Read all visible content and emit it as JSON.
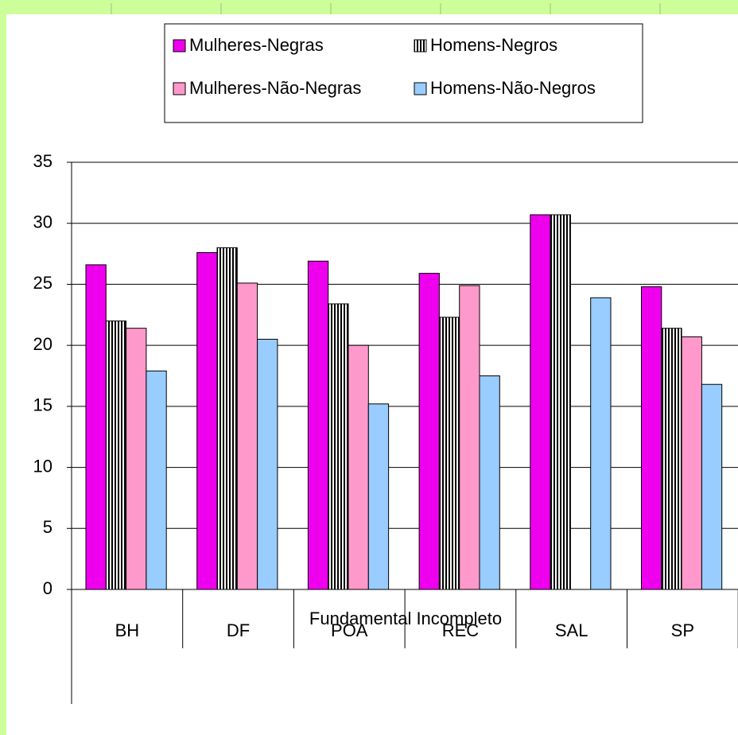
{
  "chart_data": {
    "type": "bar",
    "x_label": "Fundamental Incompleto",
    "categories": [
      "BH",
      "DF",
      "POA",
      "REC",
      "SAL",
      "SP"
    ],
    "series": [
      {
        "name": "Mulheres-Negras",
        "color": "#ee00ee",
        "values": [
          26.6,
          27.6,
          26.9,
          25.9,
          30.7,
          24.8
        ]
      },
      {
        "name": "Homens-Negros",
        "color": "#000000",
        "pattern": "vertical-stripes",
        "values": [
          22.0,
          28.0,
          23.4,
          22.3,
          30.7,
          21.4
        ]
      },
      {
        "name": "Mulheres-Não-Negras",
        "color": "#ff99cc",
        "values": [
          21.4,
          25.1,
          20.0,
          24.9,
          null,
          20.7
        ]
      },
      {
        "name": "Homens-Não-Negros",
        "color": "#99ccff",
        "values": [
          17.9,
          20.5,
          15.2,
          17.5,
          23.9,
          16.8
        ]
      }
    ],
    "ylim": [
      0,
      35
    ],
    "yticks": [
      0,
      5,
      10,
      15,
      20,
      25,
      30,
      35
    ],
    "grid": true,
    "legend": "top"
  }
}
